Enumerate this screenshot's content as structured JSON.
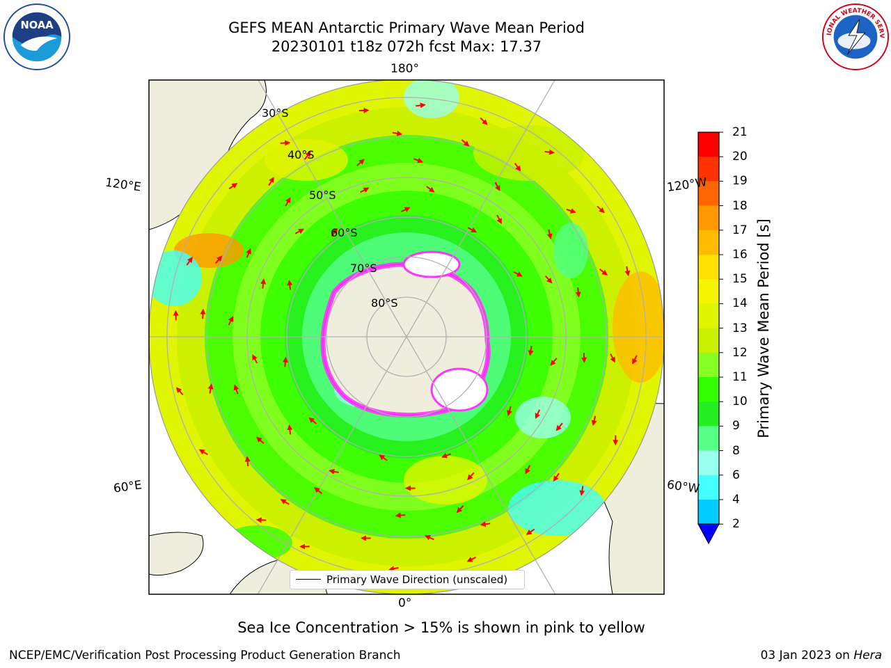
{
  "header": {
    "title_line1": "GEFS MEAN Antarctic Primary Wave Mean Period",
    "title_line2": "20230101 t18z 072h fcst   Max: 17.37"
  },
  "logos": {
    "left": "noaa-logo",
    "right": "national-weather-service-logo"
  },
  "map": {
    "projection": "south-polar-stereographic",
    "longitude_labels": {
      "top": "180°",
      "bottom": "0°",
      "upper_left": "120°E",
      "upper_right": "120°W",
      "lower_left": "60°E",
      "lower_right": "60°W"
    },
    "latitude_labels": [
      "30°S",
      "40°S",
      "50°S",
      "60°S",
      "70°S",
      "80°S"
    ],
    "colors": {
      "land": "#efeedd",
      "arrow": "#ff0000",
      "sea_ice": "#ff33ff",
      "grid": "#b0b0b0"
    }
  },
  "colorbar": {
    "label": "Primary Wave Mean Period [s]",
    "ticks": [
      "21",
      "20",
      "19",
      "18",
      "17",
      "16",
      "15",
      "14",
      "13",
      "12",
      "11",
      "10",
      "9",
      "8",
      "6",
      "4",
      "2"
    ],
    "colors": [
      "#ff0000",
      "#ff3300",
      "#ff6600",
      "#ff9900",
      "#ffbb00",
      "#ffe000",
      "#f5f500",
      "#e0f500",
      "#c8f000",
      "#88ff22",
      "#33ff00",
      "#22ee22",
      "#55ff88",
      "#99ffee",
      "#44ffff",
      "#00ccff",
      "#0088ff",
      "#0000ff"
    ]
  },
  "legend": {
    "label": "Primary Wave Direction (unscaled)"
  },
  "note": "Sea Ice Concentration > 15% is shown in pink to yellow",
  "footer": {
    "left": "NCEP/EMC/Verification Post Processing Product Generation Branch",
    "right_date": "03 Jan 2023 on ",
    "right_host": "Hera"
  }
}
